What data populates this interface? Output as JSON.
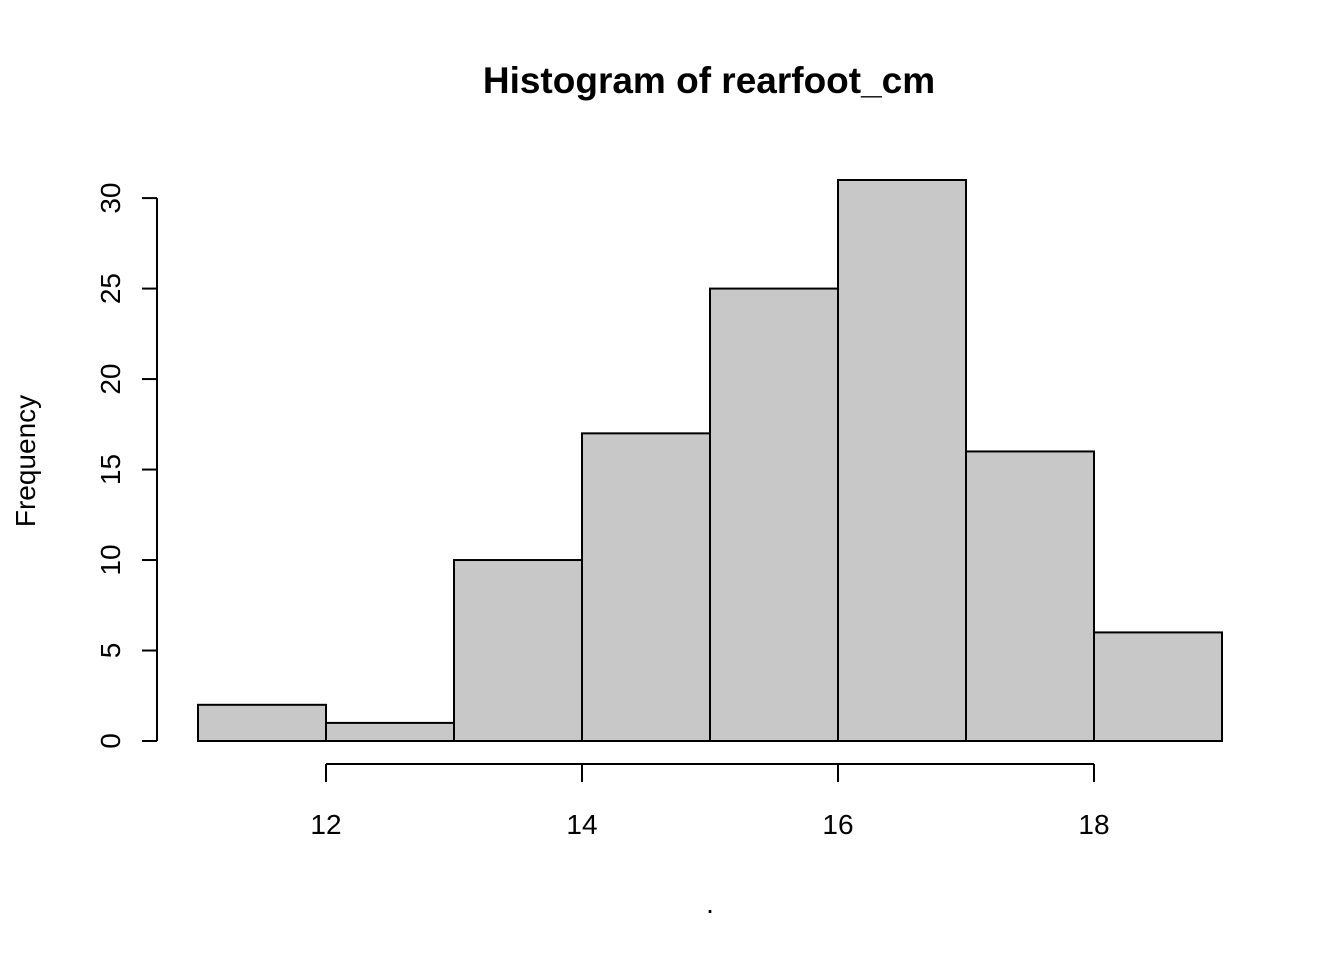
{
  "chart_data": {
    "type": "bar",
    "title": "Histogram of rearfoot_cm",
    "xlabel": ".",
    "ylabel": "Frequency",
    "bins": [
      {
        "start": 11,
        "end": 12,
        "count": 2
      },
      {
        "start": 12,
        "end": 13,
        "count": 1
      },
      {
        "start": 13,
        "end": 14,
        "count": 10
      },
      {
        "start": 14,
        "end": 15,
        "count": 17
      },
      {
        "start": 15,
        "end": 16,
        "count": 25
      },
      {
        "start": 16,
        "end": 17,
        "count": 31
      },
      {
        "start": 17,
        "end": 18,
        "count": 16
      },
      {
        "start": 18,
        "end": 19,
        "count": 6
      }
    ],
    "xticks": [
      12,
      14,
      16,
      18
    ],
    "yticks": [
      0,
      5,
      10,
      15,
      20,
      25,
      30
    ],
    "xlim": [
      11,
      19
    ],
    "ylim": [
      0,
      31
    ],
    "grid": false,
    "colors": {
      "bar_fill": "#c8c8c8",
      "bar_stroke": "#000000"
    }
  }
}
